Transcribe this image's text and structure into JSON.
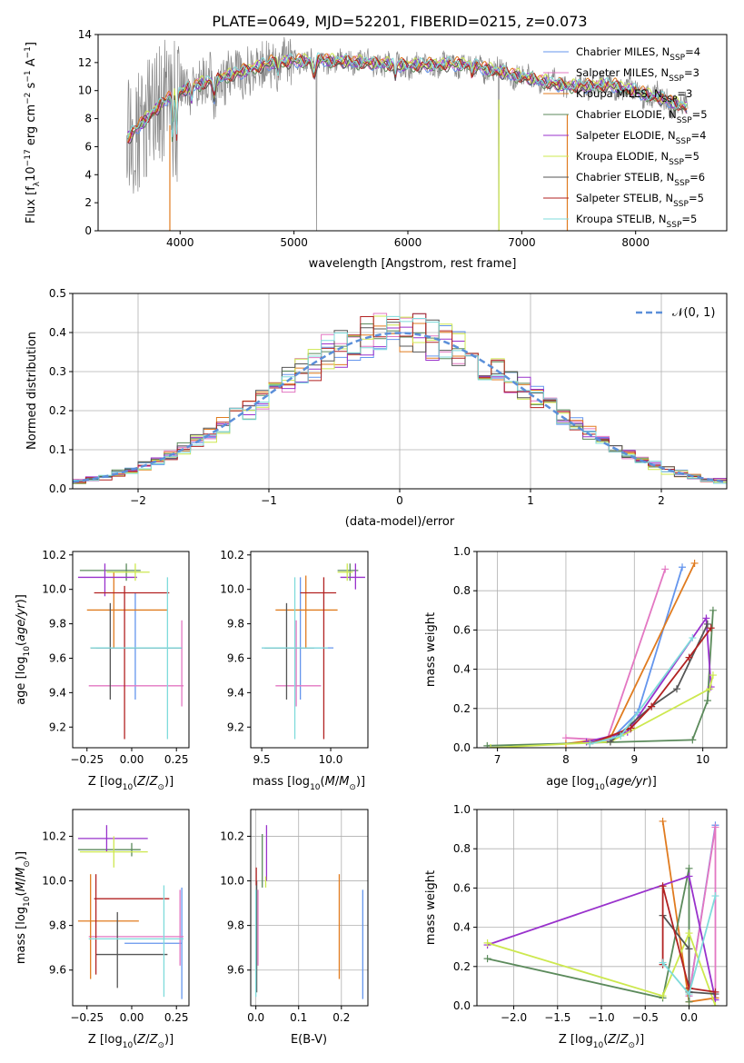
{
  "figure_title": "PLATE=0649, MJD=52201, FIBERID=0215, z=0.073",
  "colors": [
    "#6495ed",
    "#e377c2",
    "#e07b1f",
    "#5b8a5b",
    "#9932cc",
    "#cde84f",
    "#555555",
    "#b22222",
    "#7fdbdb"
  ],
  "chart_data": [
    {
      "id": "spectrum",
      "type": "line",
      "title": "PLATE=0649, MJD=52201, FIBERID=0215, z=0.073",
      "xlabel": "wavelength [Angstrom, rest frame]",
      "ylabel": "Flux [f_λ 10^-17 erg cm^-2 s^-1 A^-1]",
      "xlim": [
        3280,
        8800
      ],
      "ylim": [
        0,
        14
      ],
      "xticks": [
        4000,
        5000,
        6000,
        7000,
        8000
      ],
      "yticks": [
        0,
        2,
        4,
        6,
        8,
        10,
        12,
        14
      ],
      "grid": false,
      "legend_position": "right",
      "legend": [
        "Chabrier MILES, N_SSP=4",
        "Salpeter MILES, N_SSP=3",
        "Kroupa MILES, N_SSP=3",
        "Chabrier ELODIE, N_SSP=5",
        "Salpeter ELODIE, N_SSP=4",
        "Kroupa ELODIE, N_SSP=5",
        "Chabrier STELIB, N_SSP=6",
        "Salpeter STELIB, N_SSP=5",
        "Kroupa STELIB, N_SSP=5"
      ],
      "continuum": [
        [
          3530,
          6.5
        ],
        [
          3700,
          8.0
        ],
        [
          3900,
          9.5
        ],
        [
          4100,
          10.3
        ],
        [
          4400,
          11.0
        ],
        [
          4800,
          12.0
        ],
        [
          5200,
          12.2
        ],
        [
          5600,
          12.0
        ],
        [
          6000,
          11.8
        ],
        [
          6500,
          11.9
        ],
        [
          7000,
          11.0
        ],
        [
          7400,
          10.3
        ],
        [
          7800,
          10.4
        ],
        [
          8200,
          9.5
        ],
        [
          8450,
          8.8
        ]
      ]
    },
    {
      "id": "residuals",
      "type": "histogram",
      "xlabel": "(data-model)/error",
      "ylabel": "Normed distribution",
      "xlim": [
        -2.5,
        2.5
      ],
      "ylim": [
        0,
        0.5
      ],
      "xticks": [
        -2,
        -1,
        0,
        1,
        2
      ],
      "yticks": [
        0.0,
        0.1,
        0.2,
        0.3,
        0.4,
        0.5
      ],
      "grid": true,
      "legend_position": "top-right",
      "reference_curve": "N(0,1)",
      "bin_width": 0.1,
      "bins_from": -2.5
    },
    {
      "id": "z-age",
      "type": "errorbar",
      "xlabel": "Z [log10(Z/Z⊙)]",
      "ylabel": "age [log10(age/yr)]",
      "xlim": [
        -0.33,
        0.32
      ],
      "ylim": [
        9.08,
        10.22
      ],
      "xticks": [
        -0.25,
        0.0,
        0.25
      ],
      "yticks": [
        9.2,
        9.4,
        9.6,
        9.8,
        10.0,
        10.2
      ],
      "grid": false,
      "points": [
        {
          "x": 0.02,
          "y": 9.66,
          "xlo": -0.2,
          "xhi": 0.28,
          "ylo": 9.36,
          "yhi": 9.98
        },
        {
          "x": 0.28,
          "y": 9.44,
          "xlo": -0.24,
          "xhi": 0.29,
          "ylo": 9.32,
          "yhi": 9.82
        },
        {
          "x": -0.1,
          "y": 9.88,
          "xlo": -0.25,
          "xhi": 0.2,
          "ylo": 9.66,
          "yhi": 10.1
        },
        {
          "x": -0.03,
          "y": 10.11,
          "xlo": -0.29,
          "xhi": 0.05,
          "ylo": 10.05,
          "yhi": 10.15
        },
        {
          "x": -0.15,
          "y": 10.07,
          "xlo": -0.3,
          "xhi": 0.03,
          "ylo": 9.96,
          "yhi": 10.15
        },
        {
          "x": 0.02,
          "y": 10.1,
          "xlo": -0.14,
          "xhi": 0.1,
          "ylo": 10.05,
          "yhi": 10.15
        },
        {
          "x": -0.12,
          "y": 9.66,
          "xlo": -0.23,
          "xhi": 0.28,
          "ylo": 9.36,
          "yhi": 9.92
        },
        {
          "x": -0.04,
          "y": 9.98,
          "xlo": -0.21,
          "xhi": 0.21,
          "ylo": 9.13,
          "yhi": 10.02
        },
        {
          "x": 0.2,
          "y": 9.66,
          "xlo": -0.23,
          "xhi": 0.28,
          "ylo": 9.13,
          "yhi": 10.07
        }
      ]
    },
    {
      "id": "mass-age",
      "type": "errorbar",
      "xlabel": "mass [log10(M/M⊙)]",
      "ylabel": "",
      "xlim": [
        9.42,
        10.27
      ],
      "ylim": [
        9.08,
        10.22
      ],
      "xticks": [
        9.5,
        10.0
      ],
      "yticks": [
        9.2,
        9.4,
        9.6,
        9.8,
        10.0,
        10.2
      ],
      "grid": false,
      "points": [
        {
          "x": 9.78,
          "y": 9.66,
          "xlo": 9.5,
          "xhi": 10.02,
          "ylo": 9.36,
          "yhi": 10.07
        },
        {
          "x": 9.75,
          "y": 9.44,
          "xlo": 9.6,
          "xhi": 9.93,
          "ylo": 9.32,
          "yhi": 9.82
        },
        {
          "x": 9.82,
          "y": 9.88,
          "xlo": 9.6,
          "xhi": 10.05,
          "ylo": 9.66,
          "yhi": 10.08
        },
        {
          "x": 10.14,
          "y": 10.11,
          "xlo": 10.05,
          "xhi": 10.2,
          "ylo": 10.05,
          "yhi": 10.15
        },
        {
          "x": 10.18,
          "y": 10.07,
          "xlo": 10.07,
          "xhi": 10.25,
          "ylo": 10.0,
          "yhi": 10.15
        },
        {
          "x": 10.12,
          "y": 10.1,
          "xlo": 10.05,
          "xhi": 10.16,
          "ylo": 10.05,
          "yhi": 10.15
        },
        {
          "x": 9.68,
          "y": 9.66,
          "xlo": 9.52,
          "xhi": 9.88,
          "ylo": 9.36,
          "yhi": 9.92
        },
        {
          "x": 9.95,
          "y": 9.98,
          "xlo": 9.78,
          "xhi": 10.04,
          "ylo": 9.13,
          "yhi": 10.07
        },
        {
          "x": 9.74,
          "y": 9.66,
          "xlo": 9.5,
          "xhi": 9.98,
          "ylo": 9.13,
          "yhi": 10.07
        }
      ]
    },
    {
      "id": "age-weight",
      "type": "line",
      "xlabel": "age [log10(age/yr)]",
      "ylabel": "mass weight",
      "xlim": [
        6.7,
        10.35
      ],
      "ylim": [
        0,
        1
      ],
      "xticks": [
        7,
        8,
        9,
        10
      ],
      "yticks": [
        0.0,
        0.2,
        0.4,
        0.6,
        0.8,
        1.0
      ],
      "grid": true,
      "series": [
        {
          "points": [
            [
              8.3,
              0.03
            ],
            [
              8.65,
              0.04
            ],
            [
              9.05,
              0.18
            ],
            [
              9.7,
              0.92
            ]
          ]
        },
        {
          "points": [
            [
              8.0,
              0.05
            ],
            [
              8.6,
              0.04
            ],
            [
              9.45,
              0.91
            ]
          ]
        },
        {
          "points": [
            [
              8.0,
              0.02
            ],
            [
              8.65,
              0.05
            ],
            [
              9.88,
              0.94
            ]
          ]
        },
        {
          "points": [
            [
              6.85,
              0.01
            ],
            [
              9.85,
              0.04
            ],
            [
              10.07,
              0.24
            ],
            [
              10.15,
              0.7
            ]
          ]
        },
        {
          "points": [
            [
              8.3,
              0.03
            ],
            [
              8.9,
              0.08
            ],
            [
              10.05,
              0.66
            ],
            [
              10.12,
              0.31
            ]
          ]
        },
        {
          "points": [
            [
              6.9,
              0.0
            ],
            [
              8.65,
              0.03
            ],
            [
              10.1,
              0.3
            ],
            [
              10.15,
              0.37
            ]
          ]
        },
        {
          "points": [
            [
              8.65,
              0.03
            ],
            [
              9.25,
              0.21
            ],
            [
              9.62,
              0.3
            ],
            [
              10.07,
              0.63
            ]
          ]
        },
        {
          "points": [
            [
              8.35,
              0.02
            ],
            [
              8.95,
              0.1
            ],
            [
              9.25,
              0.21
            ],
            [
              9.8,
              0.46
            ],
            [
              10.12,
              0.61
            ]
          ]
        },
        {
          "points": [
            [
              8.35,
              0.02
            ],
            [
              8.8,
              0.06
            ],
            [
              9.85,
              0.56
            ]
          ]
        }
      ]
    },
    {
      "id": "z-mass",
      "type": "errorbar",
      "xlabel": "Z [log10(Z/Z⊙)]",
      "ylabel": "mass [log10(M/M⊙)]",
      "xlim": [
        -0.33,
        0.32
      ],
      "ylim": [
        9.44,
        10.32
      ],
      "xticks": [
        -0.25,
        0.0,
        0.25
      ],
      "yticks": [
        9.6,
        9.8,
        10.0,
        10.2
      ],
      "grid": false,
      "points": [
        {
          "x": 0.28,
          "y": 9.72,
          "xlo": -0.04,
          "xhi": 0.28,
          "ylo": 9.47,
          "yhi": 9.97
        },
        {
          "x": 0.27,
          "y": 9.75,
          "xlo": -0.24,
          "xhi": 0.29,
          "ylo": 9.62,
          "yhi": 9.96
        },
        {
          "x": -0.23,
          "y": 9.82,
          "xlo": -0.3,
          "xhi": 0.04,
          "ylo": 9.56,
          "yhi": 10.03
        },
        {
          "x": 0.0,
          "y": 10.14,
          "xlo": -0.3,
          "xhi": 0.05,
          "ylo": 10.11,
          "yhi": 10.17
        },
        {
          "x": -0.14,
          "y": 10.19,
          "xlo": -0.3,
          "xhi": 0.09,
          "ylo": 10.13,
          "yhi": 10.25
        },
        {
          "x": -0.1,
          "y": 10.13,
          "xlo": -0.29,
          "xhi": 0.09,
          "ylo": 10.06,
          "yhi": 10.2
        },
        {
          "x": -0.08,
          "y": 9.67,
          "xlo": -0.2,
          "xhi": 0.2,
          "ylo": 9.52,
          "yhi": 9.86
        },
        {
          "x": -0.2,
          "y": 9.92,
          "xlo": -0.21,
          "xhi": 0.21,
          "ylo": 9.58,
          "yhi": 10.03
        },
        {
          "x": 0.18,
          "y": 9.74,
          "xlo": -0.24,
          "xhi": 0.29,
          "ylo": 9.48,
          "yhi": 9.98
        }
      ]
    },
    {
      "id": "ebv-mass",
      "type": "errorbar",
      "xlabel": "E(B-V)",
      "ylabel": "",
      "xlim": [
        -0.012,
        0.262
      ],
      "ylim": [
        9.44,
        10.32
      ],
      "xticks": [
        0.0,
        0.1,
        0.2
      ],
      "yticks": [
        9.6,
        9.8,
        10.0,
        10.2
      ],
      "grid": true,
      "points": [
        {
          "x": 0.25,
          "y": 9.72,
          "ylo": 9.47,
          "yhi": 9.96
        },
        {
          "x": 0.005,
          "y": 9.75,
          "ylo": 9.62,
          "yhi": 9.96
        },
        {
          "x": 0.195,
          "y": 9.8,
          "ylo": 9.56,
          "yhi": 10.03
        },
        {
          "x": 0.015,
          "y": 10.1,
          "ylo": 9.97,
          "yhi": 10.21
        },
        {
          "x": 0.025,
          "y": 10.15,
          "ylo": 10.0,
          "yhi": 10.25
        },
        {
          "x": 0.023,
          "y": 10.0,
          "ylo": 9.97,
          "yhi": 10.02
        },
        {
          "x": 0.002,
          "y": 9.75,
          "ylo": 9.5,
          "yhi": 10.0
        },
        {
          "x": 0.001,
          "y": 10.0,
          "ylo": 9.98,
          "yhi": 10.06
        },
        {
          "x": 0.0,
          "y": 9.7,
          "ylo": 9.48,
          "yhi": 9.96
        }
      ]
    },
    {
      "id": "z-weight",
      "type": "line",
      "xlabel": "Z [log10(Z/Z⊙)]",
      "ylabel": "mass weight",
      "xlim": [
        -2.42,
        0.43
      ],
      "ylim": [
        0,
        1
      ],
      "xticks": [
        -2.0,
        -1.5,
        -1.0,
        -0.5,
        0.0
      ],
      "yticks": [
        0.0,
        0.2,
        0.4,
        0.6,
        0.8,
        1.0
      ],
      "grid": true,
      "series": [
        {
          "points": [
            [
              0.0,
              0.07
            ],
            [
              0.0,
              0.05
            ],
            [
              0.3,
              0.92
            ]
          ]
        },
        {
          "points": [
            [
              0.0,
              0.05
            ],
            [
              0.3,
              0.91
            ],
            [
              0.3,
              0.04
            ]
          ]
        },
        {
          "points": [
            [
              -0.3,
              0.94
            ],
            [
              0.0,
              0.02
            ],
            [
              0.3,
              0.04
            ]
          ]
        },
        {
          "points": [
            [
              -2.3,
              0.24
            ],
            [
              -0.3,
              0.04
            ],
            [
              0.0,
              0.7
            ],
            [
              0.0,
              0.02
            ]
          ]
        },
        {
          "points": [
            [
              -2.3,
              0.31
            ],
            [
              0.0,
              0.66
            ],
            [
              0.3,
              0.03
            ]
          ]
        },
        {
          "points": [
            [
              -2.3,
              0.32
            ],
            [
              -0.3,
              0.05
            ],
            [
              0.0,
              0.37
            ],
            [
              0.3,
              0.0
            ]
          ]
        },
        {
          "points": [
            [
              -0.3,
              0.46
            ],
            [
              0.0,
              0.29
            ],
            [
              0.0,
              0.07
            ],
            [
              0.3,
              0.06
            ]
          ]
        },
        {
          "points": [
            [
              -0.3,
              0.21
            ],
            [
              -0.3,
              0.61
            ],
            [
              0.0,
              0.09
            ],
            [
              0.3,
              0.07
            ]
          ]
        },
        {
          "points": [
            [
              -0.3,
              0.22
            ],
            [
              0.0,
              0.06
            ],
            [
              0.3,
              0.56
            ]
          ]
        }
      ]
    }
  ]
}
